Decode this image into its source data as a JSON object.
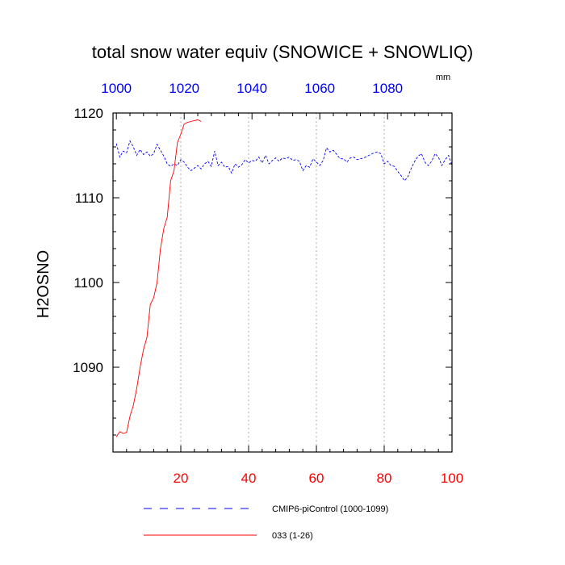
{
  "chart_data": {
    "type": "line",
    "title": "total snow water equiv (SNOWICE + SNOWLIQ)",
    "ylabel": "H2OSNO",
    "units": "mm",
    "bottom_axis": {
      "range": [
        0,
        100
      ],
      "ticks": [
        20,
        40,
        60,
        80,
        100
      ],
      "color": "#ff0000"
    },
    "top_axis": {
      "range": [
        999,
        1099
      ],
      "ticks": [
        1000,
        1020,
        1040,
        1060,
        1080
      ],
      "color": "#0000ff"
    },
    "y_axis": {
      "range": [
        1080,
        1120
      ],
      "ticks": [
        1090,
        1100,
        1110,
        1120
      ]
    },
    "vertical_grid": [
      20,
      40,
      60,
      80
    ],
    "legend_position": "bottom",
    "series": [
      {
        "name": "CMIP6-piControl (1000-1099)",
        "color": "#0000ff",
        "style": "dashed",
        "axis": "top",
        "x": [
          1000,
          1001,
          1002,
          1003,
          1004,
          1005,
          1006,
          1007,
          1008,
          1009,
          1010,
          1011,
          1012,
          1013,
          1014,
          1015,
          1016,
          1017,
          1018,
          1019,
          1020,
          1021,
          1022,
          1023,
          1024,
          1025,
          1026,
          1027,
          1028,
          1029,
          1030,
          1031,
          1032,
          1033,
          1034,
          1035,
          1036,
          1037,
          1038,
          1039,
          1040,
          1041,
          1042,
          1043,
          1044,
          1045,
          1046,
          1047,
          1048,
          1049,
          1050,
          1051,
          1052,
          1053,
          1054,
          1055,
          1056,
          1057,
          1058,
          1059,
          1060,
          1061,
          1062,
          1063,
          1064,
          1065,
          1066,
          1067,
          1068,
          1069,
          1070,
          1071,
          1072,
          1073,
          1074,
          1075,
          1076,
          1077,
          1078,
          1079,
          1080,
          1081,
          1082,
          1083,
          1084,
          1085,
          1086,
          1087,
          1088,
          1089,
          1090,
          1091,
          1092,
          1093,
          1094,
          1095,
          1096,
          1097,
          1098,
          1099
        ],
        "y": [
          1116.4,
          1114.8,
          1115.5,
          1115.3,
          1116.7,
          1116.0,
          1115.0,
          1115.7,
          1115.1,
          1115.4,
          1114.9,
          1115.2,
          1116.3,
          1115.6,
          1114.9,
          1114.0,
          1113.7,
          1114.0,
          1113.8,
          1114.5,
          1114.2,
          1113.6,
          1113.2,
          1113.5,
          1113.8,
          1113.4,
          1114.0,
          1114.3,
          1113.7,
          1115.5,
          1113.8,
          1114.2,
          1113.6,
          1113.7,
          1112.9,
          1114.0,
          1113.6,
          1113.9,
          1114.5,
          1114.1,
          1114.4,
          1114.3,
          1114.8,
          1114.1,
          1115.0,
          1114.0,
          1114.4,
          1114.7,
          1114.3,
          1114.7,
          1114.6,
          1114.8,
          1114.4,
          1114.5,
          1114.3,
          1113.2,
          1113.8,
          1113.6,
          1114.6,
          1114.2,
          1113.8,
          1114.4,
          1115.9,
          1115.4,
          1115.6,
          1115.1,
          1114.6,
          1114.6,
          1114.2,
          1114.7,
          1114.8,
          1114.5,
          1114.6,
          1114.7,
          1114.9,
          1115.1,
          1115.3,
          1115.4,
          1115.2,
          1114.0,
          1114.3,
          1113.8,
          1113.7,
          1113.1,
          1112.6,
          1112.0,
          1112.5,
          1113.5,
          1114.3,
          1114.9,
          1115.2,
          1114.2,
          1113.8,
          1114.3,
          1115.2,
          1114.8,
          1113.8,
          1114.5,
          1115.0,
          1113.8
        ]
      },
      {
        "name": "033 (1-26)",
        "color": "#ff0000",
        "style": "solid",
        "axis": "bottom",
        "x": [
          1,
          2,
          3,
          4,
          5,
          6,
          7,
          8,
          9,
          10,
          11,
          12,
          13,
          14,
          15,
          16,
          17,
          18,
          19,
          20,
          21,
          22,
          23,
          24,
          25,
          26
        ],
        "y": [
          1081.8,
          1082.4,
          1082.2,
          1082.3,
          1084.2,
          1085.5,
          1087.5,
          1090.0,
          1092.1,
          1093.5,
          1097.4,
          1098.2,
          1100.0,
          1104.0,
          1106.4,
          1107.7,
          1112.0,
          1113.2,
          1116.5,
          1117.5,
          1118.7,
          1118.9,
          1119.0,
          1119.1,
          1119.2,
          1119.0
        ]
      }
    ]
  }
}
